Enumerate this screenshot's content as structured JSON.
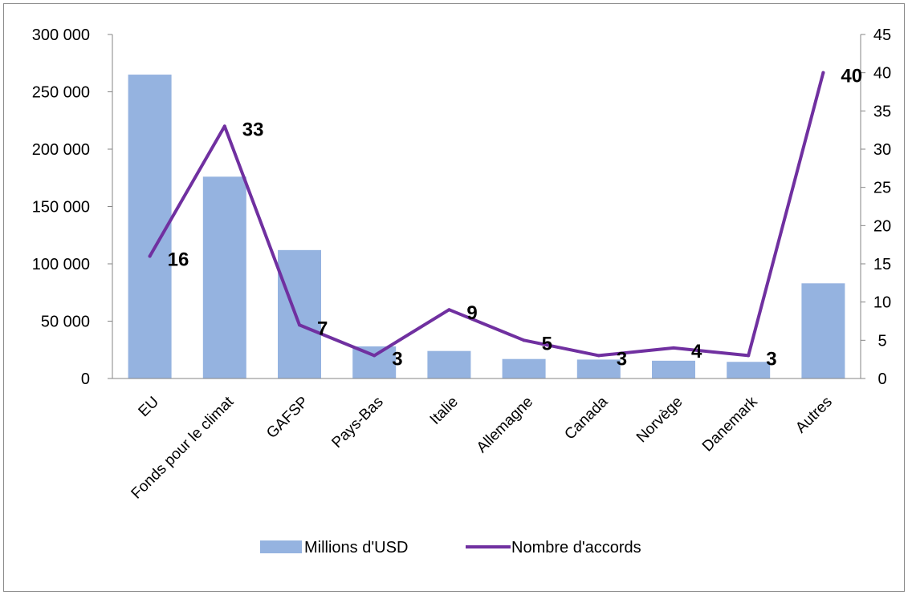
{
  "chart_data": {
    "type": "bar",
    "categories": [
      "EU",
      "Fonds pour le climat",
      "GAFSP",
      "Pays-Bas",
      "Italie",
      "Allemagne",
      "Canada",
      "Norvège",
      "Danemark",
      "Autres"
    ],
    "series": [
      {
        "name": "Millions d'USD",
        "type": "bar",
        "axis": "left",
        "color": "#95b3e0",
        "values": [
          265000,
          176000,
          112000,
          28000,
          24000,
          17000,
          16500,
          15500,
          14500,
          83000
        ]
      },
      {
        "name": "Nombre d'accords",
        "type": "line",
        "axis": "right",
        "color": "#7030a0",
        "values": [
          16,
          33,
          7,
          3,
          9,
          5,
          3,
          4,
          3,
          40
        ],
        "data_labels": [
          "16",
          "33",
          "7",
          "3",
          "9",
          "5",
          "3",
          "4",
          "3",
          "40"
        ]
      }
    ],
    "y_left": {
      "ylim": [
        0,
        300000
      ],
      "ticks": [
        0,
        50000,
        100000,
        150000,
        200000,
        250000,
        300000
      ],
      "tick_labels": [
        "0",
        "50 000",
        "100 000",
        "150 000",
        "200 000",
        "250 000",
        "300 000"
      ]
    },
    "y_right": {
      "ylim": [
        0,
        45
      ],
      "ticks": [
        0,
        5,
        10,
        15,
        20,
        25,
        30,
        35,
        40,
        45
      ],
      "tick_labels": [
        "0",
        "5",
        "10",
        "15",
        "20",
        "25",
        "30",
        "35",
        "40",
        "45"
      ]
    },
    "title": "",
    "xlabel": "",
    "ylabel": "",
    "grid": false,
    "legend": "bottom",
    "legend_entries": [
      "Millions d'USD",
      "Nombre d'accords"
    ]
  }
}
